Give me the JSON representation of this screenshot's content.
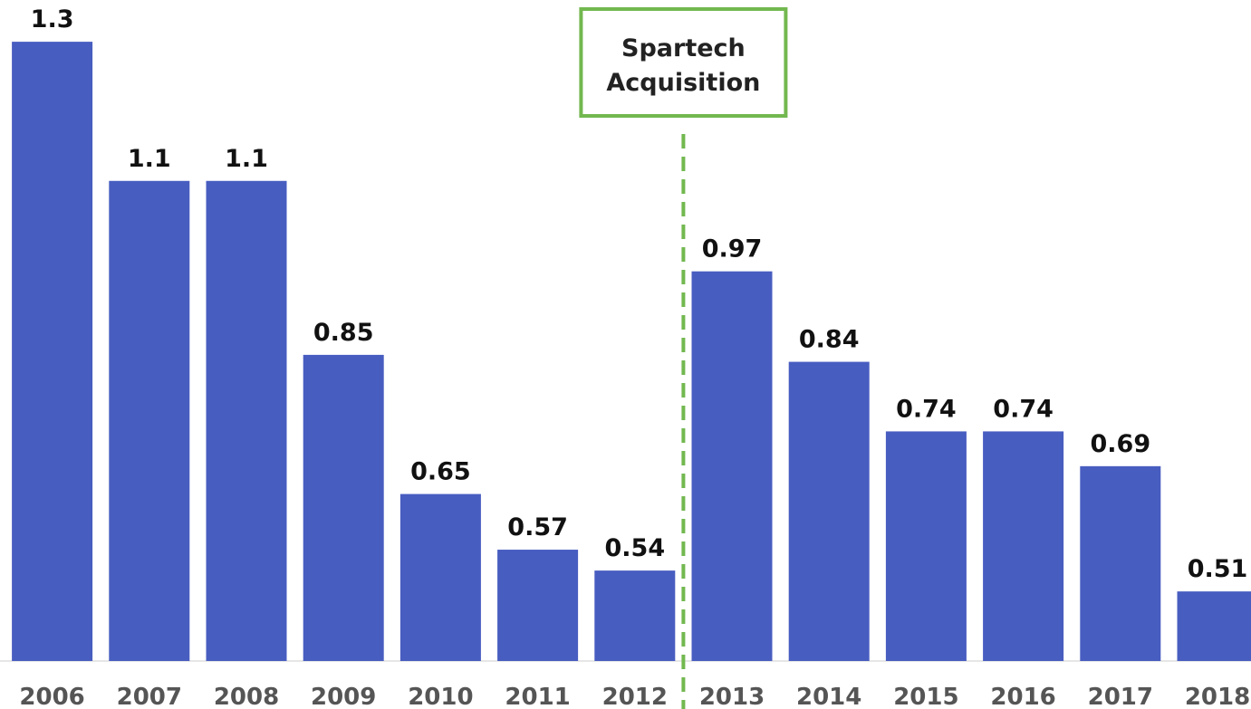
{
  "chart_data": {
    "type": "bar",
    "categories": [
      "2006",
      "2007",
      "2008",
      "2009",
      "2010",
      "2011",
      "2012",
      "2013",
      "2014",
      "2015",
      "2016",
      "2017",
      "2018"
    ],
    "values": [
      1.3,
      1.1,
      1.1,
      0.85,
      0.65,
      0.57,
      0.54,
      0.97,
      0.84,
      0.74,
      0.74,
      0.69,
      0.51
    ],
    "color": "#485dc0",
    "ylim": [
      0.41,
      1.36
    ],
    "annotation": {
      "lines": [
        "Spartech",
        "Acquisition"
      ],
      "color": "#72b84f"
    }
  }
}
